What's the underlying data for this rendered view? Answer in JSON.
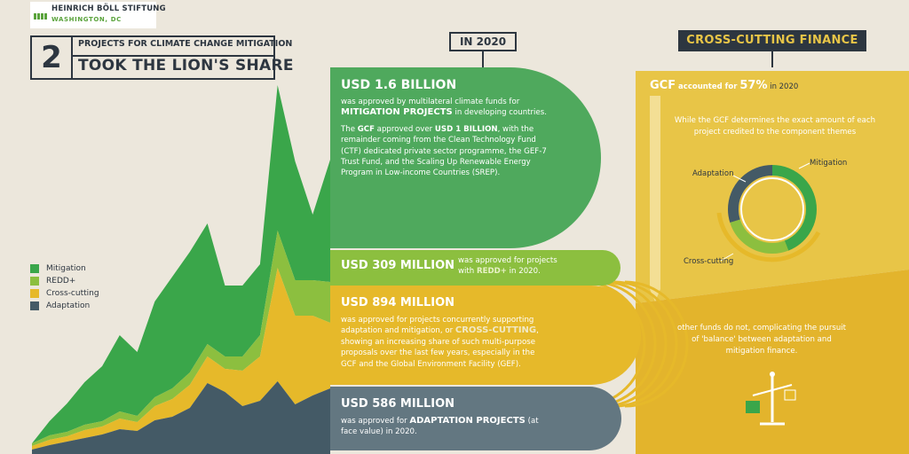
{
  "header": {
    "org_name": "HEINRICH BÖLL STIFTUNG",
    "org_location": "WASHINGTON, DC"
  },
  "title": {
    "number": "2",
    "subtitle": "PROJECTS FOR CLIMATE CHANGE MITIGATION",
    "main": "TOOK THE LION'S SHARE"
  },
  "legend": [
    {
      "label": "Mitigation",
      "color": "#3aa64a"
    },
    {
      "label": "REDD+",
      "color": "#8cbf3f"
    },
    {
      "label": "Cross-cutting",
      "color": "#e6b92a"
    },
    {
      "label": "Adaptation",
      "color": "#445a66"
    }
  ],
  "year_label": "IN 2020",
  "bands": {
    "mitigation": {
      "amount": "USD 1.6 BILLION",
      "text_a": "was approved by multilateral climate funds for",
      "text_b": "MITIGATION PROJECTS",
      "text_c": " in developing countries.",
      "text_d": "The ",
      "text_e": "GCF",
      "text_f": " approved over ",
      "text_g": "USD 1 BILLION",
      "text_h": ", with the remainder coming from the Clean Technology Fund (CTF) dedicated private sector programme, the GEF-7 Trust Fund, and the Scaling Up Renewable Energy Program in Low-income Countries (SREP).",
      "color": "#4fa95d"
    },
    "redd": {
      "amount": "USD 309 MILLION",
      "text_a": "was approved for projects with ",
      "text_b": "REDD+",
      "text_c": " in 2020.",
      "color": "#8cbf3f"
    },
    "crosscutting": {
      "amount": "USD 894 MILLION",
      "text_a": "was approved for projects concurrently supporting adaptation and mitigation, or ",
      "text_b": "CROSS-CUTTING",
      "text_c": ", showing an increasing share of such multi-purpose proposals over the last few years, especially in the GCF and the Global Environment Facility (GEF).",
      "color": "#e6b92a"
    },
    "adaptation": {
      "amount": "USD 586 MILLION",
      "text_a": "was approved for ",
      "text_b": "ADAPTATION PROJECTS",
      "text_c": " (at face value) in 2020.",
      "color": "#637781"
    }
  },
  "cross_cutting_panel": {
    "title": "CROSS-CUTTING FINANCE",
    "gcf": "GCF",
    "accounted": " accounted for ",
    "share": "57%",
    "in_year": " in 2020",
    "note_top": "While the GCF determines the exact amount of each project credited to the component themes",
    "note_bottom": "other funds do not, complicating the pursuit of 'balance' between adaptation and mitigation finance.",
    "donut_labels": {
      "mitigation": "Mitigation",
      "adaptation": "Adaptation",
      "crosscutting": "Cross-cutting"
    }
  },
  "chart_data": {
    "type": "area",
    "series": [
      {
        "name": "Adaptation",
        "values": [
          5,
          10,
          14,
          18,
          22,
          28,
          26,
          38,
          42,
          52,
          80,
          70,
          54,
          60,
          82,
          56,
          66,
          74
        ]
      },
      {
        "name": "Cross-cutting",
        "values": [
          4,
          6,
          6,
          9,
          9,
          12,
          10,
          16,
          20,
          26,
          30,
          26,
          40,
          50,
          128,
          100,
          90,
          74
        ]
      },
      {
        "name": "REDD+",
        "values": [
          3,
          5,
          5,
          6,
          6,
          8,
          7,
          10,
          12,
          14,
          14,
          14,
          16,
          24,
          42,
          40,
          40,
          46
        ]
      },
      {
        "name": "Mitigation",
        "values": [
          0,
          16,
          32,
          48,
          62,
          86,
          72,
          108,
          126,
          136,
          136,
          80,
          80,
          80,
          164,
          134,
          74,
          138
        ]
      }
    ],
    "donut": [
      {
        "name": "Mitigation",
        "value": 44,
        "color": "#3aa64a"
      },
      {
        "name": "Cross-cutting",
        "value": 26,
        "color": "#8cbf3f"
      },
      {
        "name": "Adaptation",
        "value": 30,
        "color": "#445a66"
      }
    ]
  }
}
